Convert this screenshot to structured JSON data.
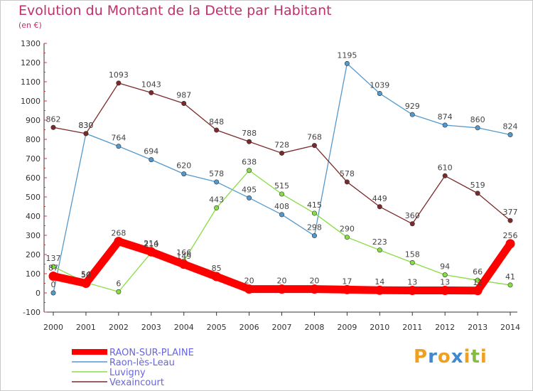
{
  "chart_data": {
    "type": "line",
    "title": "Evolution du Montant de la Dette par Habitant",
    "unit": "(en €)",
    "x": [
      "2000",
      "2001",
      "2002",
      "2003",
      "2004",
      "2005",
      "2006",
      "2007",
      "2008",
      "2009",
      "2010",
      "2011",
      "2012",
      "2013",
      "2014"
    ],
    "ylim": [
      -100,
      1300
    ],
    "yticks": [
      -100,
      0,
      100,
      200,
      300,
      400,
      500,
      600,
      700,
      800,
      900,
      1000,
      1100,
      1200,
      1300
    ],
    "grid": false,
    "legend_position": "bottom-left",
    "series": [
      {
        "name": "RAON-SUR-PLAINE",
        "color": "#ff0000",
        "bold": true,
        "values": [
          87,
          50,
          268,
          214,
          149,
          85,
          20,
          20,
          20,
          17,
          14,
          13,
          13,
          12,
          256
        ]
      },
      {
        "name": "Raon-lès-Leau",
        "color": "#5599cc",
        "values": [
          0,
          830,
          764,
          694,
          620,
          578,
          495,
          408,
          298,
          1195,
          1039,
          929,
          874,
          860,
          824
        ]
      },
      {
        "name": "Luvigny",
        "color": "#88dd44",
        "values": [
          137,
          54,
          6,
          210,
          166,
          443,
          638,
          515,
          415,
          290,
          223,
          158,
          94,
          66,
          41
        ]
      },
      {
        "name": "Vexaincourt",
        "color": "#7a2a2a",
        "values": [
          862,
          830,
          1093,
          1043,
          987,
          848,
          788,
          728,
          768,
          578,
          449,
          360,
          610,
          519,
          377
        ]
      }
    ]
  },
  "logo": {
    "letters": [
      "P",
      "r",
      "o",
      "x",
      "i",
      "t",
      "i"
    ],
    "colors": [
      "#f0a020",
      "#4488cc",
      "#f0a020",
      "#4488cc",
      "#f0a020",
      "#88bb44",
      "#f0a020"
    ]
  }
}
